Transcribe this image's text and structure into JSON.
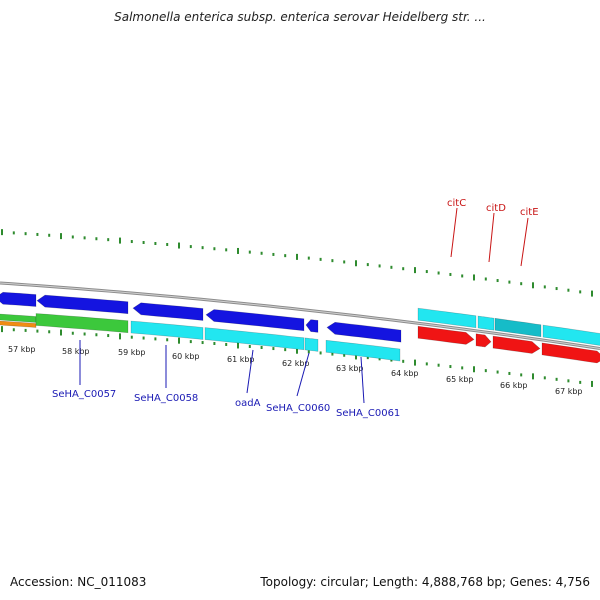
{
  "title": "Salmonella enterica subsp. enterica serovar Heidelberg str. ...",
  "footer": {
    "accession": "Accession: NC_011083",
    "topology": "Topology: circular; Length: 4,888,768 bp; Genes: 4,756"
  },
  "colors": {
    "backbone": "#8c8c8c",
    "tick": "#2e8b2e",
    "blue_gene": "#1414e0",
    "cyan_gene": "#22e6f0",
    "red_gene": "#f01414",
    "green_gene": "#3cc83c",
    "orange_gene": "#f08c14",
    "blue_label": "#1a1ab4",
    "red_label": "#c81414"
  },
  "scale_labels": [
    "57 kbp",
    "58 kbp",
    "59 kbp",
    "60 kbp",
    "61 kbp",
    "62 kbp",
    "63 kbp",
    "64 kbp",
    "65 kbp",
    "66 kbp",
    "67 kbp"
  ],
  "gene_labels": [
    {
      "text": "SeHA_C0057",
      "color": "blue_label"
    },
    {
      "text": "SeHA_C0058",
      "color": "blue_label"
    },
    {
      "text": "oadA",
      "color": "blue_label"
    },
    {
      "text": "SeHA_C0060",
      "color": "blue_label"
    },
    {
      "text": "SeHA_C0061",
      "color": "blue_label"
    },
    {
      "text": "citC",
      "color": "red_label"
    },
    {
      "text": "citD",
      "color": "red_label"
    },
    {
      "text": "citE",
      "color": "red_label"
    }
  ]
}
